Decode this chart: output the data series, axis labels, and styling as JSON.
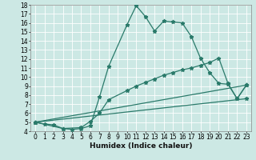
{
  "xlabel": "Humidex (Indice chaleur)",
  "xlim": [
    -0.5,
    23.5
  ],
  "ylim": [
    4,
    18
  ],
  "xticks": [
    0,
    1,
    2,
    3,
    4,
    5,
    6,
    7,
    8,
    9,
    10,
    11,
    12,
    13,
    14,
    15,
    16,
    17,
    18,
    19,
    20,
    21,
    22,
    23
  ],
  "yticks": [
    4,
    5,
    6,
    7,
    8,
    9,
    10,
    11,
    12,
    13,
    14,
    15,
    16,
    17,
    18
  ],
  "bg_color": "#cce8e4",
  "grid_color": "#ffffff",
  "line_color": "#2a7a6a",
  "lines": [
    {
      "x": [
        0,
        1,
        2,
        3,
        4,
        5,
        6,
        7,
        8,
        10,
        11,
        12,
        13,
        14,
        15,
        16,
        17,
        18,
        19,
        20,
        21,
        22,
        23
      ],
      "y": [
        5.0,
        4.8,
        4.7,
        4.3,
        4.2,
        4.3,
        4.6,
        7.8,
        11.2,
        15.8,
        17.9,
        16.7,
        15.1,
        16.2,
        16.1,
        16.0,
        14.5,
        12.1,
        10.5,
        9.3,
        9.2,
        7.6,
        9.1
      ]
    },
    {
      "x": [
        0,
        3,
        5,
        6,
        7,
        8,
        10,
        11,
        12,
        13,
        14,
        15,
        16,
        17,
        18,
        19,
        20,
        21,
        22,
        23
      ],
      "y": [
        5.0,
        4.3,
        4.4,
        5.1,
        6.0,
        7.5,
        8.5,
        9.0,
        9.4,
        9.8,
        10.2,
        10.5,
        10.8,
        11.0,
        11.3,
        11.6,
        12.1,
        9.3,
        7.6,
        9.1
      ]
    },
    {
      "x": [
        0,
        23
      ],
      "y": [
        5.0,
        7.6
      ]
    },
    {
      "x": [
        0,
        23
      ],
      "y": [
        5.0,
        9.1
      ]
    }
  ],
  "marker": "*",
  "markersize": 3.5,
  "linewidth": 0.9,
  "fontsize_ticks": 5.5,
  "fontsize_label": 6.5
}
